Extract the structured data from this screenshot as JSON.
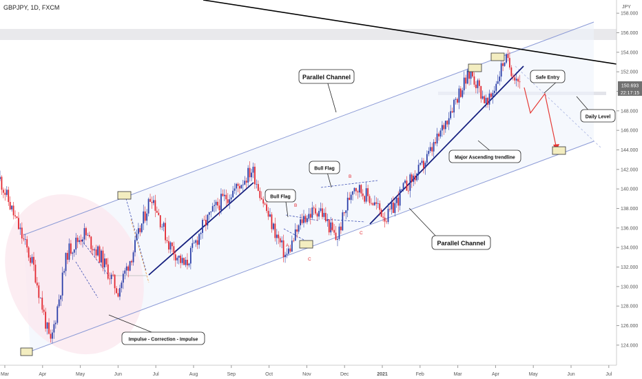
{
  "header": {
    "symbol_title": "GBPJPY, 1D, FXCM",
    "currency": "JPY"
  },
  "price_badges": {
    "last_price": "150.693",
    "countdown": "22:17:15"
  },
  "colors": {
    "bull": "#2a3ea8",
    "bear": "#e2262f",
    "channel": "#8b9ad6",
    "trendline": "#16207f",
    "arrow": "#e53935",
    "resistance": "#000000",
    "highlight_box": "#f3edc0",
    "badge": "#707070"
  },
  "chart_data": {
    "type": "candlestick",
    "symbol": "GBPJPY",
    "timeframe": "1D",
    "exchange": "FXCM",
    "ylim": [
      123,
      159
    ],
    "y_ticks": [
      "158.000",
      "156.000",
      "154.000",
      "152.000",
      "150.000",
      "148.000",
      "146.000",
      "144.000",
      "142.000",
      "140.000",
      "138.000",
      "136.000",
      "134.000",
      "132.000",
      "130.000",
      "128.000",
      "126.000",
      "124.000"
    ],
    "x_ticks": [
      "Mar",
      "Apr",
      "May",
      "Jun",
      "Jul",
      "Aug",
      "Sep",
      "Oct",
      "Nov",
      "Dec",
      "2021",
      "Feb",
      "Mar",
      "Apr",
      "May",
      "Jun",
      "Jul"
    ],
    "price_path": [
      [
        "Mar",
        141.0
      ],
      [
        "Mar",
        136.5
      ],
      [
        "Mar",
        132.0
      ],
      [
        "Mar",
        124.0
      ],
      [
        "Apr",
        133.5
      ],
      [
        "Apr",
        135.5
      ],
      [
        "May",
        133.0
      ],
      [
        "May",
        129.5
      ],
      [
        "May",
        134.0
      ],
      [
        "Jun",
        139.5
      ],
      [
        "Jun",
        134.5
      ],
      [
        "Jul",
        132.0
      ],
      [
        "Jul",
        136.0
      ],
      [
        "Aug",
        138.5
      ],
      [
        "Aug",
        140.0
      ],
      [
        "Sep",
        142.0
      ],
      [
        "Sep",
        137.0
      ],
      [
        "Oct",
        133.0
      ],
      [
        "Oct",
        137.0
      ],
      [
        "Oct",
        138.0
      ],
      [
        "Nov",
        134.8
      ],
      [
        "Nov",
        140.5
      ],
      [
        "Dec",
        139.0
      ],
      [
        "Dec",
        137.0
      ],
      [
        "2021",
        140.0
      ],
      [
        "2021",
        142.0
      ],
      [
        "Feb",
        145.0
      ],
      [
        "Feb",
        149.0
      ],
      [
        "Mar",
        152.0
      ],
      [
        "Mar",
        148.5
      ],
      [
        "Apr",
        153.4
      ],
      [
        "Apr",
        150.7
      ]
    ],
    "annotations": [
      {
        "label": "Parallel Channel",
        "kind": "callout"
      },
      {
        "label": "Parallel Channel",
        "kind": "callout"
      },
      {
        "label": "Impulse - Correction - Impulse",
        "kind": "callout"
      },
      {
        "label": "Bull Flag",
        "kind": "callout"
      },
      {
        "label": "Bull Flag",
        "kind": "callout"
      },
      {
        "label": "Major Ascending trendline",
        "kind": "callout"
      },
      {
        "label": "Safe Entry",
        "kind": "callout"
      },
      {
        "label": "Daily Level",
        "kind": "callout"
      },
      {
        "label": "A",
        "kind": "wave"
      },
      {
        "label": "B",
        "kind": "wave"
      },
      {
        "label": "C",
        "kind": "wave"
      },
      {
        "label": "A",
        "kind": "wave"
      },
      {
        "label": "B",
        "kind": "wave"
      },
      {
        "label": "C",
        "kind": "wave"
      }
    ],
    "grid": false,
    "legend": "none"
  }
}
